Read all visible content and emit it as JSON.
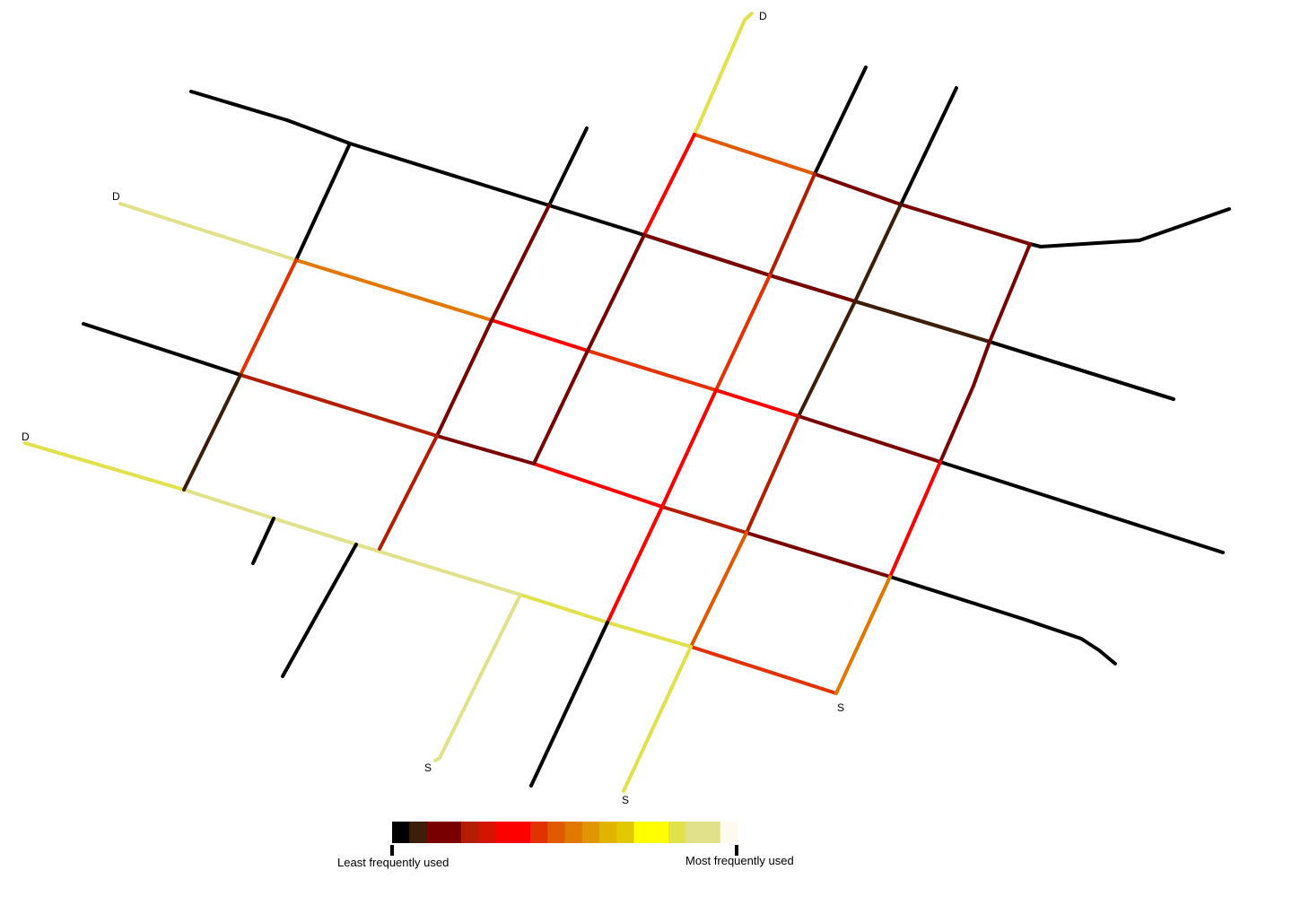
{
  "endpoints": [
    {
      "id": "dest-top",
      "label": "D"
    },
    {
      "id": "dest-upper-left",
      "label": "D"
    },
    {
      "id": "dest-left",
      "label": "D"
    },
    {
      "id": "source-bottom-left",
      "label": "S"
    },
    {
      "id": "source-bottom-center",
      "label": "S"
    },
    {
      "id": "source-bottom-right",
      "label": "S"
    }
  ],
  "legend": {
    "low_label": "Least frequently used",
    "high_label": "Most frequently used",
    "colors": [
      "#000000",
      "#3c1e0a",
      "#780000",
      "#780000",
      "#b41e00",
      "#d21400",
      "#ff0000",
      "#ff0000",
      "#e13200",
      "#e15a00",
      "#e17800",
      "#e19600",
      "#e1b400",
      "#e1c800",
      "#ffff00",
      "#ffff00",
      "#e1e14b",
      "#e1e18c",
      "#e1e18c",
      "#fffaf0"
    ]
  },
  "streets": [
    {
      "id": "west-east-top",
      "color": "#000000"
    },
    {
      "id": "east-spur",
      "color": "#000000"
    },
    {
      "id": "diag-from-dest-top",
      "color": "#e1e14b"
    },
    {
      "id": "top-right-seg-1",
      "color": "#e15a00"
    },
    {
      "id": "top-right-seg-2",
      "color": "#780000"
    },
    {
      "id": "top-right-seg-3",
      "color": "#780000"
    },
    {
      "id": "west-east-upper-left",
      "color": "#e1e18c"
    },
    {
      "id": "upper-orange",
      "color": "#e17800"
    },
    {
      "id": "upper-red-1",
      "color": "#ff0000"
    },
    {
      "id": "upper-red-2",
      "color": "#e13200"
    },
    {
      "id": "upper-red-3",
      "color": "#ff0000"
    },
    {
      "id": "upper-dark-1",
      "color": "#780000"
    },
    {
      "id": "upper-dark-2",
      "color": "#780000"
    },
    {
      "id": "mid-west",
      "color": "#000000"
    },
    {
      "id": "mid-red-1",
      "color": "#b41e00"
    },
    {
      "id": "mid-dark-1",
      "color": "#780000"
    },
    {
      "id": "mid-red-2",
      "color": "#ff0000"
    },
    {
      "id": "mid-red-3",
      "color": "#ff0000"
    },
    {
      "id": "mid-east",
      "color": "#000000"
    },
    {
      "id": "mid-upper-dark",
      "color": "#780000"
    },
    {
      "id": "mid-upper-brown",
      "color": "#3c1e0a"
    },
    {
      "id": "mid-upper-east",
      "color": "#000000"
    },
    {
      "id": "lower-west-yellow",
      "color": "#e1e14b"
    },
    {
      "id": "lower-pale-1",
      "color": "#e1e18c"
    },
    {
      "id": "lower-yellow-2",
      "color": "#e1e14b"
    },
    {
      "id": "lower-red-end",
      "color": "#e13200"
    },
    {
      "id": "lower-mid-1",
      "color": "#b41e00"
    },
    {
      "id": "lower-mid-2",
      "color": "#780000"
    },
    {
      "id": "lower-east",
      "color": "#000000"
    },
    {
      "id": "ne-1",
      "color": "#000000"
    },
    {
      "id": "ne-2",
      "color": "#000000"
    },
    {
      "id": "ne-3",
      "color": "#000000"
    },
    {
      "id": "ne-4",
      "color": "#000000"
    },
    {
      "id": "col-a-1",
      "color": "#e13200"
    },
    {
      "id": "col-a-2",
      "color": "#3c1e0a"
    },
    {
      "id": "col-b-1",
      "color": "#780000"
    },
    {
      "id": "col-b-2",
      "color": "#b41e00"
    },
    {
      "id": "col-c-1",
      "color": "#ff0000"
    },
    {
      "id": "col-c-2",
      "color": "#780000"
    },
    {
      "id": "col-d-1",
      "color": "#b41e00"
    },
    {
      "id": "col-d-2",
      "color": "#e13200"
    },
    {
      "id": "col-d-3",
      "color": "#ff0000"
    },
    {
      "id": "col-e-1",
      "color": "#3c1e0a"
    },
    {
      "id": "col-e-2",
      "color": "#b41e00"
    },
    {
      "id": "col-e-3",
      "color": "#e15a00"
    },
    {
      "id": "col-e-4",
      "color": "#e1e14b"
    },
    {
      "id": "col-f-1",
      "color": "#780000"
    },
    {
      "id": "col-f-2",
      "color": "#ff0000"
    },
    {
      "id": "col-f-3",
      "color": "#e17800"
    },
    {
      "id": "stub-1",
      "color": "#000000"
    },
    {
      "id": "stub-2",
      "color": "#000000"
    },
    {
      "id": "stub-3",
      "color": "#000000"
    },
    {
      "id": "source-diag-pale",
      "color": "#e1e18c"
    }
  ]
}
